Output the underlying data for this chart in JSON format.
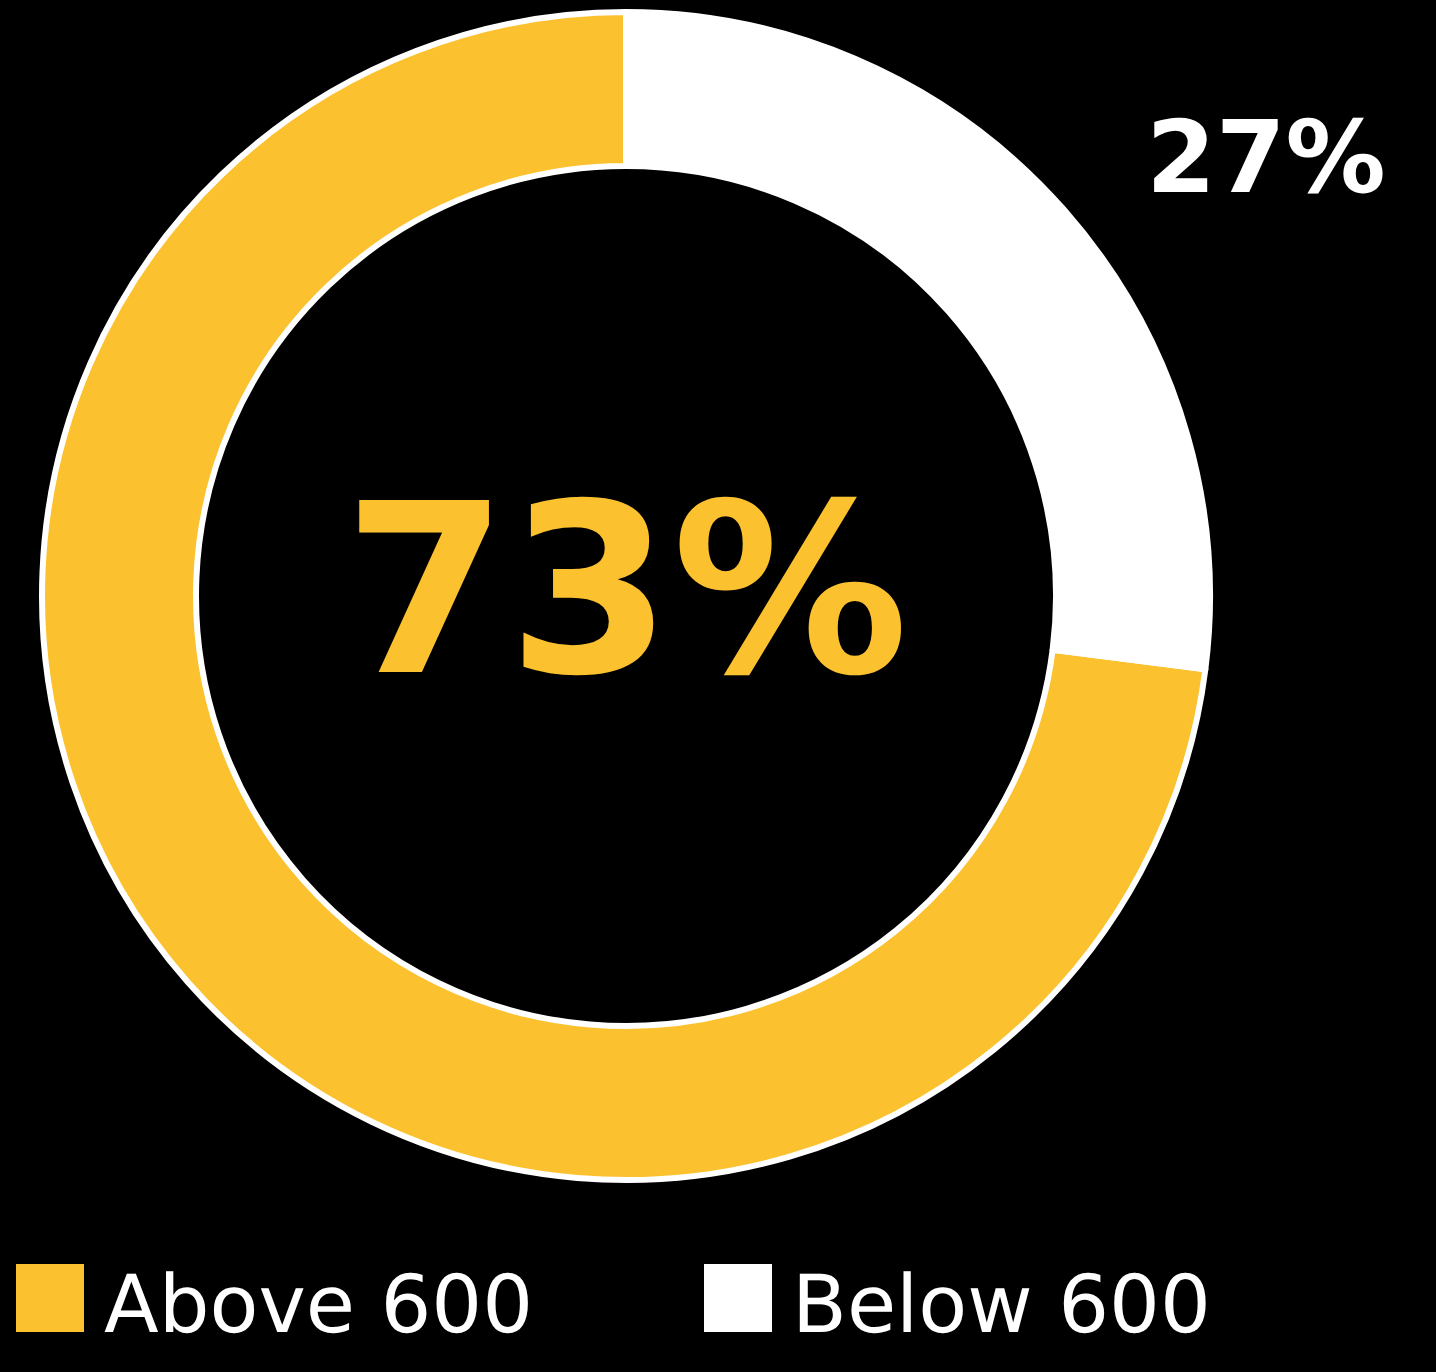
{
  "chart_data": {
    "type": "donut",
    "categories": [
      "Above 600",
      "Below 600"
    ],
    "values": [
      73,
      27
    ],
    "colors": [
      "#fcc12f",
      "#ffffff"
    ],
    "value_labels": [
      "73%",
      "27%"
    ],
    "legend": "bottom"
  }
}
